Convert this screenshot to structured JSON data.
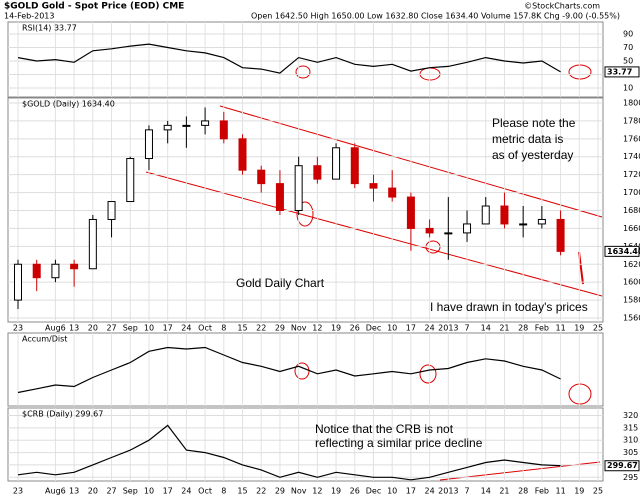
{
  "header": {
    "symbol_title": "$GOLD Gold - Spot Price (EOD) CME",
    "date": "14-Feb-2013",
    "quote": "Open 1642.50 High 1650.00 Low 1632.80 Close 1634.40 Volume 157.8K Chg -9.00 (-0.55%)",
    "source": "©StockCharts.com"
  },
  "chart_data": [
    {
      "type": "line",
      "label": "RSI(14) 33.77",
      "color": "#000000",
      "values": [
        55,
        50,
        52,
        48,
        65,
        68,
        72,
        75,
        70,
        65,
        62,
        55,
        40,
        38,
        32,
        55,
        48,
        55,
        45,
        42,
        45,
        35,
        40,
        42,
        48,
        55,
        50,
        47,
        50,
        33.77,
        null,
        null
      ],
      "ylim": [
        0,
        100
      ],
      "yticks": [
        10,
        30,
        50,
        70,
        90
      ],
      "grid": true
    },
    {
      "type": "candlestick",
      "label": "$GOLD (Daily) 1634.40",
      "last_value_label": "1634.40",
      "categories": [
        "23",
        null,
        "Aug6",
        "13",
        "20",
        "27",
        "Sep",
        "10",
        "17",
        "24",
        "Oct",
        "8",
        "15",
        "22",
        "29",
        "Nov",
        "12",
        "19",
        "26",
        "Dec",
        "10",
        "17",
        "24",
        "2013",
        "7",
        "14",
        "21",
        "28",
        "Feb",
        "11",
        "19",
        "25"
      ],
      "open": [
        1580,
        1620,
        1605,
        1620,
        1615,
        1670,
        1690,
        1738,
        1770,
        1775,
        1775,
        1780,
        1760,
        1725,
        1710,
        1680,
        1730,
        1715,
        1750,
        1710,
        1705,
        1695,
        1660,
        1655,
        1655,
        1665,
        1685,
        1665,
        1665,
        1670,
        null,
        null
      ],
      "high": [
        1625,
        1625,
        1625,
        1625,
        1675,
        1690,
        1740,
        1775,
        1780,
        1785,
        1795,
        1790,
        1765,
        1730,
        1725,
        1740,
        1740,
        1755,
        1755,
        1720,
        1725,
        1700,
        1670,
        1695,
        1680,
        1695,
        1700,
        1685,
        1685,
        1680,
        null,
        null
      ],
      "low": [
        1570,
        1590,
        1600,
        1595,
        1615,
        1650,
        1690,
        1725,
        1755,
        1750,
        1765,
        1755,
        1720,
        1700,
        1675,
        1675,
        1710,
        1715,
        1705,
        1690,
        1690,
        1635,
        1650,
        1625,
        1645,
        1665,
        1660,
        1650,
        1660,
        1630,
        null,
        null
      ],
      "close": [
        1620,
        1605,
        1620,
        1615,
        1670,
        1690,
        1738,
        1770,
        1775,
        1775,
        1780,
        1760,
        1725,
        1710,
        1680,
        1730,
        1715,
        1750,
        1710,
        1705,
        1695,
        1660,
        1655,
        1655,
        1665,
        1685,
        1665,
        1665,
        1670,
        1634.4,
        null,
        null
      ],
      "up_color": "#000000",
      "down_color": "#cc0000",
      "ylim": [
        1555,
        1805
      ],
      "yticks": [
        1560,
        1580,
        1600,
        1620,
        1640,
        1660,
        1680,
        1700,
        1720,
        1740,
        1760,
        1780,
        1800
      ],
      "grid": true,
      "annotations": [
        [
          "Please note the",
          "metric data is",
          "as of yesterday"
        ],
        [
          "Gold Daily Chart"
        ],
        [
          "I have drawn in today's prices"
        ]
      ]
    },
    {
      "type": "line",
      "label": "Accum/Dist",
      "color": "#000000",
      "values": [
        20,
        25,
        30,
        28,
        40,
        50,
        60,
        75,
        80,
        78,
        80,
        70,
        60,
        55,
        48,
        55,
        45,
        50,
        42,
        45,
        48,
        45,
        50,
        52,
        60,
        65,
        62,
        55,
        50,
        38,
        null,
        null
      ],
      "ylim": [
        10,
        90
      ]
    },
    {
      "type": "line",
      "label": "$CRB (Daily) 299.67",
      "color": "#000000",
      "categories": [
        "23",
        null,
        "Aug6",
        "13",
        "20",
        "27",
        "Sep",
        "10",
        "17",
        "24",
        "Oct",
        "8",
        "15",
        "22",
        "29",
        "Nov",
        "12",
        "19",
        "26",
        "Dec",
        "10",
        "17",
        "24",
        "2013",
        "7",
        "14",
        "21",
        "28",
        "Feb",
        "11",
        "19",
        "25"
      ],
      "values": [
        296,
        297,
        296,
        297,
        300,
        303,
        306,
        310,
        316,
        306,
        305,
        303,
        300,
        298,
        295,
        297,
        295,
        297,
        296,
        295,
        295,
        294,
        295,
        297,
        299,
        301,
        302,
        301,
        300,
        299.67,
        null,
        null
      ],
      "ylim": [
        293.5,
        321
      ],
      "yticks": [
        295,
        300,
        305,
        310,
        315,
        320
      ],
      "grid": true,
      "annotations": [
        [
          "Notice that the CRB is not",
          "reflecting a similar price decline"
        ]
      ]
    }
  ]
}
